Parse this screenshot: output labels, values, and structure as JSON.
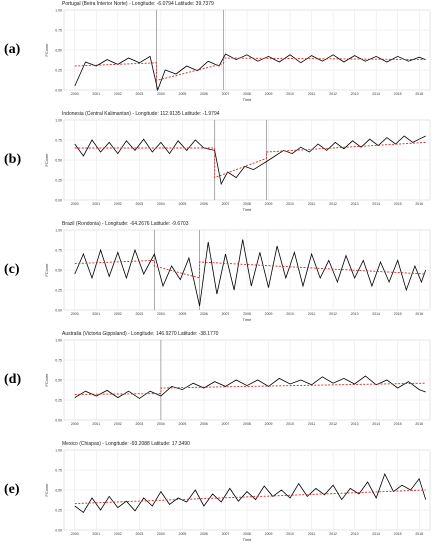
{
  "chart_data": [
    {
      "type": "line",
      "panel_label": "(a)",
      "title": "Portugal (Beira Interior Norte) - Longitude: -6.0794 Latitude: 39.7379",
      "xlabel": "Time",
      "ylabel": "FCover",
      "ylim": [
        0,
        1
      ],
      "yticks": [
        "0.00",
        "0.25",
        "0.50",
        "0.75",
        "1.00"
      ],
      "xlim": [
        1999.5,
        2016.5
      ],
      "xticks": [
        "2000",
        "2001",
        "2002",
        "2003",
        "2004",
        "2005",
        "2006",
        "2007",
        "2008",
        "2009",
        "2010",
        "2011",
        "2012",
        "2013",
        "2014",
        "2015",
        "2016"
      ],
      "breakpoints": [
        2003.8,
        2006.9
      ],
      "series": [
        {
          "role": "observed",
          "color": "#000000",
          "x": [
            2000.0,
            2000.5,
            2001.0,
            2001.5,
            2002.0,
            2002.5,
            2003.0,
            2003.5,
            2003.85,
            2004.2,
            2004.7,
            2005.2,
            2005.7,
            2006.2,
            2006.7,
            2007.0,
            2007.5,
            2008.0,
            2008.5,
            2009.0,
            2009.5,
            2010.0,
            2010.5,
            2011.0,
            2011.5,
            2012.0,
            2012.5,
            2013.0,
            2013.5,
            2014.0,
            2014.5,
            2015.0,
            2015.5,
            2016.0,
            2016.3
          ],
          "y": [
            0.05,
            0.35,
            0.3,
            0.38,
            0.32,
            0.4,
            0.34,
            0.42,
            0.0,
            0.25,
            0.2,
            0.3,
            0.24,
            0.36,
            0.3,
            0.45,
            0.38,
            0.44,
            0.36,
            0.42,
            0.35,
            0.44,
            0.34,
            0.43,
            0.36,
            0.44,
            0.35,
            0.43,
            0.36,
            0.42,
            0.35,
            0.42,
            0.36,
            0.41,
            0.38
          ]
        },
        {
          "role": "trend",
          "color": "#d62728",
          "x": [
            2000.0,
            2003.8,
            2003.8,
            2006.9,
            2006.9,
            2016.3
          ],
          "y": [
            0.3,
            0.34,
            0.12,
            0.33,
            0.4,
            0.38
          ]
        }
      ]
    },
    {
      "type": "line",
      "panel_label": "(b)",
      "title": "Indonesia (Central Kalimantan) - Longitude: 112.9135 Latitude: -1.9794",
      "xlabel": "Time",
      "ylabel": "FCover",
      "ylim": [
        0,
        1
      ],
      "yticks": [
        "0.00",
        "0.25",
        "0.50",
        "0.75",
        "1.00"
      ],
      "xlim": [
        1999.5,
        2016.5
      ],
      "xticks": [
        "2000",
        "2001",
        "2002",
        "2003",
        "2004",
        "2005",
        "2006",
        "2007",
        "2008",
        "2009",
        "2010",
        "2011",
        "2012",
        "2013",
        "2014",
        "2015",
        "2016"
      ],
      "breakpoints": [
        2006.5,
        2008.9
      ],
      "series": [
        {
          "role": "observed",
          "color": "#000000",
          "x": [
            2000.0,
            2000.4,
            2000.8,
            2001.2,
            2001.6,
            2002.0,
            2002.4,
            2002.8,
            2003.2,
            2003.6,
            2004.0,
            2004.4,
            2004.8,
            2005.2,
            2005.6,
            2006.0,
            2006.5,
            2006.8,
            2007.1,
            2007.5,
            2007.9,
            2008.3,
            2008.9,
            2009.3,
            2009.7,
            2010.1,
            2010.5,
            2010.9,
            2011.3,
            2011.7,
            2012.1,
            2012.5,
            2012.9,
            2013.3,
            2013.7,
            2014.1,
            2014.5,
            2014.9,
            2015.3,
            2015.7,
            2016.0,
            2016.3
          ],
          "y": [
            0.7,
            0.55,
            0.75,
            0.6,
            0.72,
            0.58,
            0.74,
            0.62,
            0.76,
            0.6,
            0.72,
            0.58,
            0.74,
            0.62,
            0.75,
            0.65,
            0.62,
            0.2,
            0.35,
            0.28,
            0.42,
            0.38,
            0.48,
            0.55,
            0.62,
            0.58,
            0.66,
            0.6,
            0.7,
            0.62,
            0.72,
            0.64,
            0.74,
            0.66,
            0.76,
            0.68,
            0.78,
            0.7,
            0.8,
            0.72,
            0.76,
            0.8
          ]
        },
        {
          "role": "trend",
          "color": "#d62728",
          "x": [
            2000.0,
            2006.5,
            2006.5,
            2008.9,
            2008.9,
            2016.3
          ],
          "y": [
            0.65,
            0.65,
            0.28,
            0.52,
            0.6,
            0.72
          ]
        }
      ]
    },
    {
      "type": "line",
      "panel_label": "(c)",
      "title": "Brazil (Rondonia) - Longitude: -64.2676 Latitude: -9.6703",
      "xlabel": "Time",
      "ylabel": "FCover",
      "ylim": [
        0,
        1
      ],
      "yticks": [
        "0.00",
        "0.25",
        "0.50",
        "0.75",
        "1.00"
      ],
      "xlim": [
        1999.5,
        2016.5
      ],
      "xticks": [
        "2000",
        "2001",
        "2002",
        "2003",
        "2004",
        "2005",
        "2006",
        "2007",
        "2008",
        "2009",
        "2010",
        "2011",
        "2012",
        "2013",
        "2014",
        "2015",
        "2016"
      ],
      "breakpoints": [
        2003.7,
        2005.8
      ],
      "series": [
        {
          "role": "observed",
          "color": "#000000",
          "x": [
            2000.0,
            2000.4,
            2000.8,
            2001.2,
            2001.6,
            2002.0,
            2002.4,
            2002.8,
            2003.2,
            2003.7,
            2004.1,
            2004.5,
            2004.9,
            2005.3,
            2005.8,
            2006.2,
            2006.6,
            2007.0,
            2007.4,
            2007.8,
            2008.2,
            2008.6,
            2009.0,
            2009.4,
            2009.8,
            2010.2,
            2010.6,
            2011.0,
            2011.4,
            2011.8,
            2012.2,
            2012.6,
            2013.0,
            2013.4,
            2013.8,
            2014.2,
            2014.6,
            2015.0,
            2015.4,
            2015.8,
            2016.1,
            2016.3
          ],
          "y": [
            0.45,
            0.7,
            0.4,
            0.75,
            0.42,
            0.72,
            0.4,
            0.75,
            0.45,
            0.7,
            0.3,
            0.55,
            0.38,
            0.65,
            0.05,
            0.85,
            0.2,
            0.7,
            0.25,
            0.88,
            0.3,
            0.72,
            0.28,
            0.8,
            0.4,
            0.72,
            0.3,
            0.7,
            0.4,
            0.62,
            0.35,
            0.68,
            0.4,
            0.62,
            0.3,
            0.6,
            0.35,
            0.62,
            0.25,
            0.55,
            0.35,
            0.5
          ]
        },
        {
          "role": "trend",
          "color": "#d62728",
          "x": [
            2000.0,
            2003.7,
            2003.7,
            2005.8,
            2005.8,
            2016.3
          ],
          "y": [
            0.58,
            0.62,
            0.55,
            0.4,
            0.6,
            0.45
          ]
        }
      ]
    },
    {
      "type": "line",
      "panel_label": "(d)",
      "title": "Australia (Victoria Gippsland) - Longitude: 146.9270 Latitude: -38.1770",
      "xlabel": "",
      "ylabel": "FCover",
      "ylim": [
        0,
        1
      ],
      "yticks": [
        "0.00",
        "0.25",
        "0.50",
        "0.75",
        "1.00"
      ],
      "xlim": [
        1999.5,
        2016.5
      ],
      "xticks": [
        "2000",
        "2001",
        "2002",
        "2003",
        "2004",
        "2005",
        "2006",
        "2007",
        "2008",
        "2009",
        "2010",
        "2011",
        "2012",
        "2013",
        "2014",
        "2015",
        "2016"
      ],
      "breakpoints": [
        2004.0
      ],
      "series": [
        {
          "role": "observed",
          "color": "#000000",
          "x": [
            2000.0,
            2000.5,
            2001.0,
            2001.5,
            2002.0,
            2002.5,
            2003.0,
            2003.5,
            2004.0,
            2004.5,
            2005.0,
            2005.5,
            2006.0,
            2006.5,
            2007.0,
            2007.5,
            2008.0,
            2008.5,
            2009.0,
            2009.5,
            2010.0,
            2010.5,
            2011.0,
            2011.5,
            2012.0,
            2012.5,
            2013.0,
            2013.5,
            2014.0,
            2014.5,
            2015.0,
            2015.5,
            2016.0,
            2016.3
          ],
          "y": [
            0.28,
            0.36,
            0.3,
            0.37,
            0.28,
            0.36,
            0.27,
            0.36,
            0.3,
            0.42,
            0.38,
            0.46,
            0.4,
            0.48,
            0.42,
            0.5,
            0.43,
            0.5,
            0.42,
            0.52,
            0.45,
            0.5,
            0.44,
            0.54,
            0.46,
            0.52,
            0.45,
            0.55,
            0.44,
            0.5,
            0.4,
            0.48,
            0.38,
            0.35
          ]
        },
        {
          "role": "trend",
          "color": "#d62728",
          "x": [
            2000.0,
            2004.0,
            2004.0,
            2016.3
          ],
          "y": [
            0.32,
            0.33,
            0.4,
            0.46
          ]
        }
      ]
    },
    {
      "type": "line",
      "panel_label": "(e)",
      "title": "Mexico (Chiapas) - Longitude: -93.2088 Latitude: 17.3490",
      "xlabel": "Time",
      "ylabel": "FCover",
      "ylim": [
        0,
        1
      ],
      "yticks": [
        "0.00",
        "0.25",
        "0.50",
        "0.75",
        "1.00"
      ],
      "xlim": [
        1999.5,
        2016.5
      ],
      "xticks": [
        "2000",
        "2001",
        "2002",
        "2003",
        "2004",
        "2005",
        "2006",
        "2007",
        "2008",
        "2009",
        "2010",
        "2011",
        "2012",
        "2013",
        "2014",
        "2015",
        "2016"
      ],
      "breakpoints": [],
      "series": [
        {
          "role": "observed",
          "color": "#000000",
          "x": [
            2000.0,
            2000.4,
            2000.8,
            2001.2,
            2001.6,
            2002.0,
            2002.4,
            2002.8,
            2003.2,
            2003.6,
            2004.0,
            2004.4,
            2004.8,
            2005.2,
            2005.6,
            2006.0,
            2006.4,
            2006.8,
            2007.2,
            2007.6,
            2008.0,
            2008.4,
            2008.8,
            2009.2,
            2009.6,
            2010.0,
            2010.4,
            2010.8,
            2011.2,
            2011.6,
            2012.0,
            2012.4,
            2012.8,
            2013.2,
            2013.6,
            2014.0,
            2014.4,
            2014.8,
            2015.2,
            2015.6,
            2016.0,
            2016.3
          ],
          "y": [
            0.3,
            0.22,
            0.4,
            0.25,
            0.42,
            0.28,
            0.36,
            0.24,
            0.4,
            0.3,
            0.48,
            0.32,
            0.4,
            0.35,
            0.5,
            0.3,
            0.45,
            0.35,
            0.52,
            0.36,
            0.48,
            0.38,
            0.55,
            0.42,
            0.5,
            0.4,
            0.58,
            0.42,
            0.52,
            0.44,
            0.56,
            0.38,
            0.52,
            0.45,
            0.6,
            0.4,
            0.7,
            0.48,
            0.56,
            0.5,
            0.64,
            0.38
          ]
        },
        {
          "role": "trend",
          "color": "#d62728",
          "x": [
            2000.0,
            2016.3
          ],
          "y": [
            0.33,
            0.5
          ]
        }
      ]
    }
  ]
}
